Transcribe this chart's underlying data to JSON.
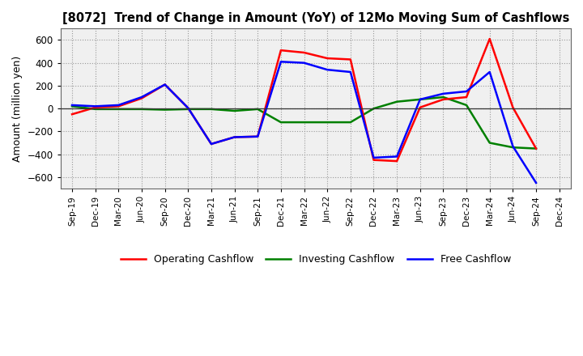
{
  "title": "[8072]  Trend of Change in Amount (YoY) of 12Mo Moving Sum of Cashflows",
  "ylabel": "Amount (million yen)",
  "x_labels": [
    "Sep-19",
    "Dec-19",
    "Mar-20",
    "Jun-20",
    "Sep-20",
    "Dec-20",
    "Mar-21",
    "Jun-21",
    "Sep-21",
    "Dec-21",
    "Mar-22",
    "Jun-22",
    "Sep-22",
    "Dec-22",
    "Mar-23",
    "Jun-23",
    "Sep-23",
    "Dec-23",
    "Mar-24",
    "Jun-24",
    "Sep-24",
    "Dec-24"
  ],
  "operating": [
    -50,
    10,
    20,
    90,
    210,
    5,
    -310,
    -250,
    -245,
    510,
    490,
    440,
    430,
    -450,
    -460,
    10,
    80,
    100,
    610,
    10,
    -350,
    null
  ],
  "investing": [
    20,
    -5,
    -5,
    -5,
    -10,
    -5,
    -5,
    -20,
    -5,
    -120,
    -120,
    -120,
    -120,
    0,
    60,
    80,
    100,
    30,
    -300,
    -340,
    -350,
    null
  ],
  "free": [
    30,
    20,
    30,
    100,
    210,
    5,
    -310,
    -250,
    -245,
    410,
    400,
    340,
    320,
    -430,
    -420,
    80,
    130,
    150,
    320,
    -330,
    -650,
    null
  ],
  "ylim": [
    -700,
    700
  ],
  "yticks": [
    -600,
    -400,
    -200,
    0,
    200,
    400,
    600
  ],
  "operating_color": "#ff0000",
  "investing_color": "#008000",
  "free_color": "#0000ff",
  "plot_bg": "#f0f0f0",
  "fig_bg": "#ffffff",
  "grid_color": "#999999",
  "spine_color": "#666666"
}
